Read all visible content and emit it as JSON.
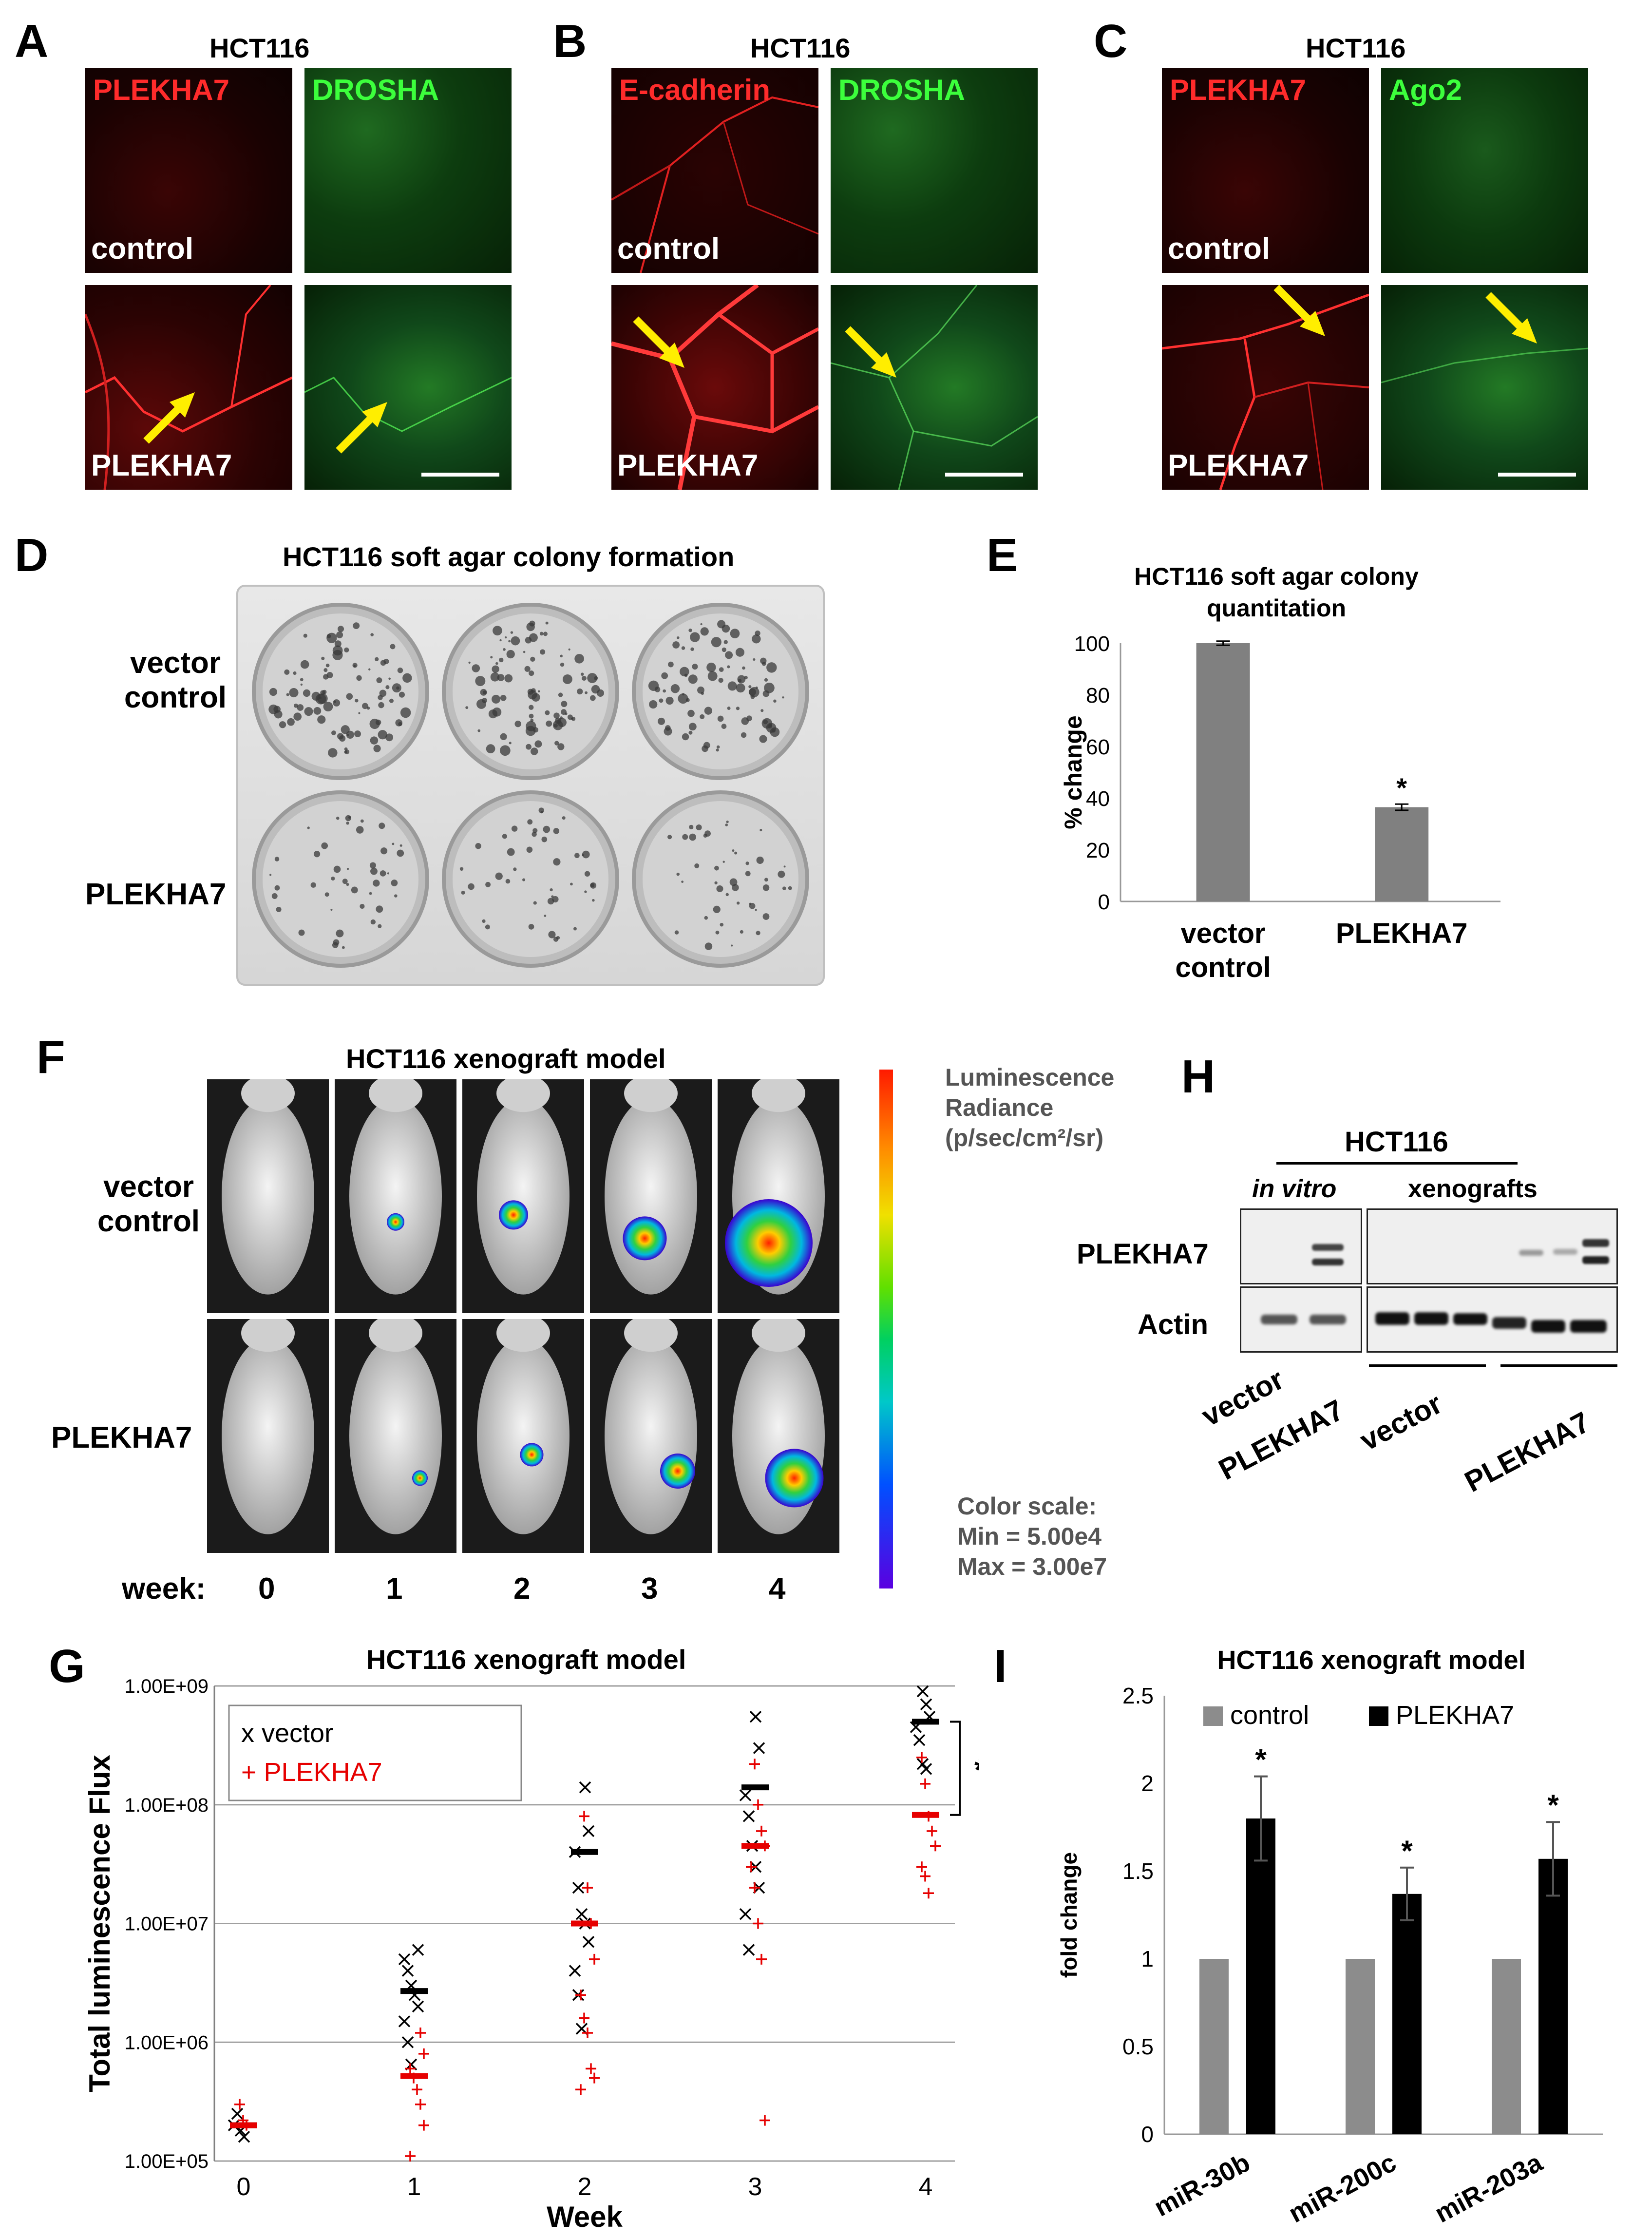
{
  "panels": {
    "A": {
      "label": "A",
      "title": "HCT116",
      "ch_red": "PLEKHA7",
      "ch_green": "DROSHA",
      "cond_top": "control",
      "cond_bottom": "PLEKHA7"
    },
    "B": {
      "label": "B",
      "title": "HCT116",
      "ch_red": "E-cadherin",
      "ch_green": "DROSHA",
      "cond_top": "control",
      "cond_bottom": "PLEKHA7"
    },
    "C": {
      "label": "C",
      "title": "HCT116",
      "ch_red": "PLEKHA7",
      "ch_green": "Ago2",
      "cond_top": "control",
      "cond_bottom": "PLEKHA7"
    },
    "D": {
      "label": "D",
      "title": "HCT116 soft agar colony formation",
      "row1_line1": "vector",
      "row1_line2": "control",
      "row2": "PLEKHA7"
    },
    "F": {
      "label": "F",
      "title": "HCT116 xenograft model",
      "row1_line1": "vector",
      "row1_line2": "control",
      "row2": "PLEKHA7",
      "week_label": "week:",
      "weeks": [
        "0",
        "1",
        "2",
        "3",
        "4"
      ],
      "legend_line1": "Luminescence",
      "legend_line2": "Radiance",
      "legend_line3": "(p/sec/cm²/sr)",
      "scale_line1": "Color scale:",
      "scale_line2": "Min = 5.00e4",
      "scale_line3": "Max = 3.00e7"
    },
    "H": {
      "label": "H",
      "title": "HCT116",
      "group1": "in vitro",
      "group2": "xenografts",
      "row1": "PLEKHA7",
      "row2": "Actin",
      "lane_vector": "vector",
      "lane_plekha7": "PLEKHA7",
      "lane_vector2": "vector",
      "lane_plekha7_2": "PLEKHA7"
    }
  },
  "chart_data": [
    {
      "id": "E",
      "type": "bar",
      "panel_label": "E",
      "title_line1": "HCT116 soft agar colony",
      "title_line2": "quantitation",
      "ylabel": "% change",
      "ylim": [
        0,
        100
      ],
      "yticks": [
        0,
        20,
        40,
        60,
        80,
        100
      ],
      "category_lines": [
        [
          "vector",
          "control"
        ],
        [
          "PLEKHA7"
        ]
      ],
      "values": [
        100,
        36.5
      ],
      "errors": [
        0.8,
        1.2
      ],
      "significance": [
        "",
        "*"
      ],
      "color": "#808080"
    },
    {
      "id": "G",
      "type": "scatter",
      "panel_label": "G",
      "title": "HCT116 xenograft model",
      "xlabel": "Week",
      "ylabel": "Total luminescence  Flux",
      "xticks": [
        0,
        1,
        2,
        3,
        4
      ],
      "yscale": "log",
      "ylim": [
        100000,
        1000000000
      ],
      "yticks": [
        "1.00E+05",
        "1.00E+06",
        "1.00E+07",
        "1.00E+08",
        "1.00E+09"
      ],
      "significance": "*",
      "series": [
        {
          "name": "vector",
          "marker": "x",
          "color": "#000000",
          "points": [
            [
              0,
              200000
            ],
            [
              0,
              250000
            ],
            [
              0,
              180000
            ],
            [
              0,
              160000
            ],
            [
              1,
              6000000
            ],
            [
              1,
              5000000
            ],
            [
              1,
              4000000
            ],
            [
              1,
              3000000
            ],
            [
              1,
              2500000
            ],
            [
              1,
              2000000
            ],
            [
              1,
              1500000
            ],
            [
              1,
              1000000
            ],
            [
              1,
              650000
            ],
            [
              2,
              140000000
            ],
            [
              2,
              60000000
            ],
            [
              2,
              40000000
            ],
            [
              2,
              20000000
            ],
            [
              2,
              12000000
            ],
            [
              2,
              10000000
            ],
            [
              2,
              7000000
            ],
            [
              2,
              4000000
            ],
            [
              2,
              2500000
            ],
            [
              2,
              1300000
            ],
            [
              3,
              550000000
            ],
            [
              3,
              300000000
            ],
            [
              3,
              120000000
            ],
            [
              3,
              80000000
            ],
            [
              3,
              45000000
            ],
            [
              3,
              30000000
            ],
            [
              3,
              20000000
            ],
            [
              3,
              12000000
            ],
            [
              3,
              6000000
            ],
            [
              4,
              900000000
            ],
            [
              4,
              700000000
            ],
            [
              4,
              550000000
            ],
            [
              4,
              450000000
            ],
            [
              4,
              350000000
            ],
            [
              4,
              220000000
            ],
            [
              4,
              200000000
            ]
          ],
          "medians": [
            200000,
            2700000,
            40000000,
            140000000,
            500000000
          ]
        },
        {
          "name": "PLEKHA7",
          "marker": "+",
          "color": "#e60000",
          "points": [
            [
              0,
              300000
            ],
            [
              0,
              220000
            ],
            [
              0,
              200000
            ],
            [
              1,
              1200000
            ],
            [
              1,
              800000
            ],
            [
              1,
              600000
            ],
            [
              1,
              500000
            ],
            [
              1,
              400000
            ],
            [
              1,
              300000
            ],
            [
              1,
              200000
            ],
            [
              1,
              110000
            ],
            [
              2,
              80000000
            ],
            [
              2,
              20000000
            ],
            [
              2,
              10000000
            ],
            [
              2,
              5000000
            ],
            [
              2,
              2500000
            ],
            [
              2,
              1600000
            ],
            [
              2,
              1200000
            ],
            [
              2,
              600000
            ],
            [
              2,
              500000
            ],
            [
              2,
              400000
            ],
            [
              3,
              220000000
            ],
            [
              3,
              100000000
            ],
            [
              3,
              60000000
            ],
            [
              3,
              45000000
            ],
            [
              3,
              30000000
            ],
            [
              3,
              20000000
            ],
            [
              3,
              10000000
            ],
            [
              3,
              5000000
            ],
            [
              3,
              220000
            ],
            [
              4,
              250000000
            ],
            [
              4,
              150000000
            ],
            [
              4,
              80000000
            ],
            [
              4,
              60000000
            ],
            [
              4,
              45000000
            ],
            [
              4,
              30000000
            ],
            [
              4,
              25000000
            ],
            [
              4,
              18000000
            ]
          ],
          "medians": [
            200000,
            520000,
            10000000,
            45000000,
            82000000
          ]
        }
      ]
    },
    {
      "id": "I",
      "type": "bar",
      "panel_label": "I",
      "title": "HCT116 xenograft model",
      "ylabel": "fold change",
      "ylim": [
        0,
        2.5
      ],
      "yticks": [
        0,
        0.5,
        1,
        1.5,
        2,
        2.5
      ],
      "categories": [
        "miR-30b",
        "miR-200c",
        "miR-203a"
      ],
      "series": [
        {
          "name": "control",
          "color": "#8c8c8c",
          "values": [
            1,
            1,
            1
          ]
        },
        {
          "name": "PLEKHA7",
          "color": "#000000",
          "values": [
            1.8,
            1.37,
            1.57
          ],
          "errors": [
            0.24,
            0.15,
            0.21
          ],
          "significance": [
            "*",
            "*",
            "*"
          ]
        }
      ]
    }
  ]
}
